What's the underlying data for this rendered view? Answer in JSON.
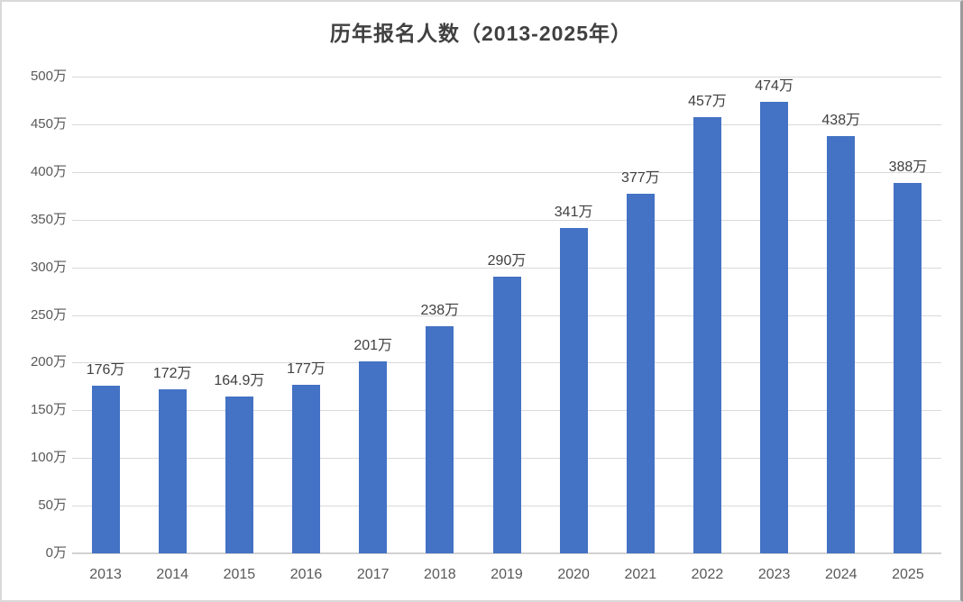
{
  "chart_data": {
    "type": "bar",
    "title": "历年报名人数（2013-2025年）",
    "categories": [
      "2013",
      "2014",
      "2015",
      "2016",
      "2017",
      "2018",
      "2019",
      "2020",
      "2021",
      "2022",
      "2023",
      "2024",
      "2025"
    ],
    "values": [
      176,
      172,
      164.9,
      177,
      201,
      238,
      290,
      341,
      377,
      457,
      474,
      438,
      388
    ],
    "data_labels": [
      "176万",
      "172万",
      "164.9万",
      "177万",
      "201万",
      "238万",
      "290万",
      "341万",
      "377万",
      "457万",
      "474万",
      "438万",
      "388万"
    ],
    "unit": "万",
    "xlabel": "",
    "ylabel": "",
    "ylim": [
      0,
      500
    ],
    "y_tick_step": 50,
    "y_tick_labels": [
      "0万",
      "50万",
      "100万",
      "150万",
      "200万",
      "250万",
      "300万",
      "350万",
      "400万",
      "450万",
      "500万"
    ],
    "grid": true,
    "legend": "none",
    "colors": {
      "bar": "#4472C4",
      "gridline": "#D9D9D9",
      "axis_line": "#D2D2D2",
      "title_text": "#404040",
      "data_label_text": "#404040",
      "tick_label_text": "#595959"
    }
  }
}
